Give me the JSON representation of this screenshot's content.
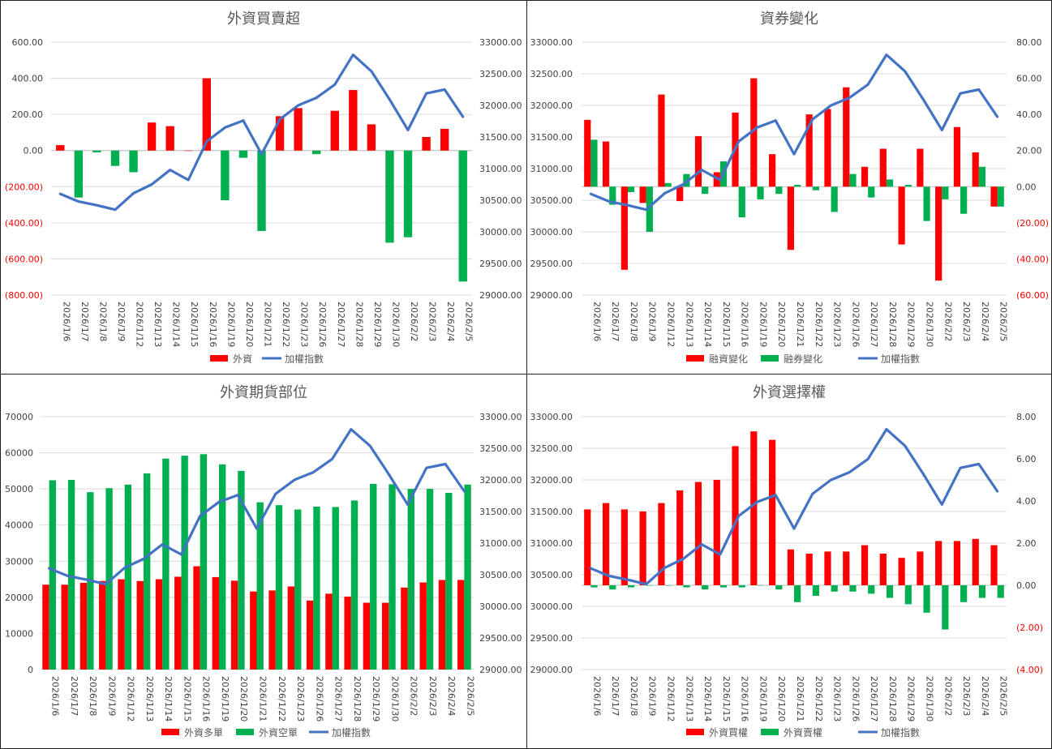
{
  "chart_data": [
    {
      "type": "bar",
      "title": "外資買賣超",
      "dates": [
        "2026/1/6",
        "2026/1/7",
        "2026/1/8",
        "2026/1/9",
        "2026/1/12",
        "2026/1/13",
        "2026/1/14",
        "2026/1/15",
        "2026/1/16",
        "2026/1/19",
        "2026/1/20",
        "2026/1/21",
        "2026/1/22",
        "2026/1/23",
        "2026/1/26",
        "2026/1/27",
        "2026/1/28",
        "2026/1/29",
        "2026/1/30",
        "2026/2/2",
        "2026/2/3",
        "2026/2/4",
        "2026/2/5"
      ],
      "y_ticks": [
        "600.00",
        "400.00",
        "200.00",
        "0.00",
        "(200.00)",
        "(400.00)",
        "(600.00)",
        "(800.00)"
      ],
      "y_ticks_right": [
        "33000.00",
        "32500.00",
        "32000.00",
        "31500.00",
        "31000.00",
        "30500.00",
        "30000.00",
        "29500.00",
        "29000.00"
      ],
      "ylim": [
        -800,
        600
      ],
      "ylim_right": [
        29000,
        33000
      ],
      "series": [
        {
          "name": "外資",
          "type": "bar",
          "values": [
            30,
            -260,
            -10,
            -85,
            -120,
            155,
            135,
            0,
            400,
            -275,
            -40,
            -445,
            190,
            235,
            -20,
            220,
            335,
            145,
            -510,
            -480,
            75,
            120,
            -725
          ]
        },
        {
          "name": "加權指數",
          "type": "line",
          "axis": "right",
          "values": [
            30600,
            30480,
            30420,
            30350,
            30610,
            30750,
            30980,
            30820,
            31430,
            31650,
            31760,
            31230,
            31780,
            32000,
            32120,
            32330,
            32800,
            32540,
            32090,
            31610,
            32190,
            32250,
            31820
          ]
        }
      ],
      "legend": [
        "外資",
        "加權指數"
      ],
      "legend_colors": [
        "#ff0000",
        "#4472c4"
      ],
      "legend_kinds": [
        "bar",
        "line"
      ]
    },
    {
      "type": "bar",
      "title": "資券變化",
      "dates": [
        "2026/1/6",
        "2026/1/7",
        "2026/1/8",
        "2026/1/9",
        "2026/1/12",
        "2026/1/13",
        "2026/1/14",
        "2026/1/15",
        "2026/1/16",
        "2026/1/19",
        "2026/1/20",
        "2026/1/21",
        "2026/1/22",
        "2026/1/23",
        "2026/1/26",
        "2026/1/27",
        "2026/1/28",
        "2026/1/29",
        "2026/1/30",
        "2026/2/2",
        "2026/2/3",
        "2026/2/4",
        "2026/2/5"
      ],
      "y_ticks": [
        "33000.00",
        "32500.00",
        "32000.00",
        "31500.00",
        "31000.00",
        "30500.00",
        "30000.00",
        "29500.00",
        "29000.00"
      ],
      "y_ticks_right": [
        "80.00",
        "60.00",
        "40.00",
        "20.00",
        "0.00",
        "(20.00)",
        "(40.00)",
        "(60.00)"
      ],
      "ylim": [
        29000,
        33000
      ],
      "ylim_right": [
        -60,
        80
      ],
      "series": [
        {
          "name": "融資變化",
          "type": "bar",
          "values": [
            37,
            25,
            -46,
            -9,
            51,
            -8,
            28,
            8,
            41,
            60,
            18,
            -35,
            40,
            43,
            55,
            11,
            21,
            -32,
            21,
            -52,
            33,
            19,
            -11
          ]
        },
        {
          "name": "融券變化",
          "type": "bar",
          "values": [
            26,
            -10,
            -3,
            -25,
            2,
            7,
            -4,
            14,
            -17,
            -7,
            -4,
            1,
            -2,
            -14,
            7,
            -6,
            4,
            1,
            -19,
            -7,
            -15,
            11,
            -11
          ]
        },
        {
          "name": "加權指數",
          "type": "line",
          "axis": "left",
          "values": [
            30600,
            30480,
            30420,
            30350,
            30610,
            30750,
            30980,
            30820,
            31430,
            31650,
            31760,
            31230,
            31780,
            32000,
            32120,
            32330,
            32800,
            32540,
            32090,
            31610,
            32190,
            32250,
            31820
          ]
        }
      ],
      "legend": [
        "融資變化",
        "融券變化",
        "加權指數"
      ],
      "legend_colors": [
        "#ff0000",
        "#00b050",
        "#4472c4"
      ],
      "legend_kinds": [
        "bar",
        "bar",
        "line"
      ]
    },
    {
      "type": "bar",
      "title": "外資期貨部位",
      "dates": [
        "2026/1/6",
        "2026/1/7",
        "2026/1/8",
        "2026/1/9",
        "2026/1/12",
        "2026/1/13",
        "2026/1/14",
        "2026/1/15",
        "2026/1/16",
        "2026/1/19",
        "2026/1/20",
        "2026/1/21",
        "2026/1/22",
        "2026/1/23",
        "2026/1/26",
        "2026/1/27",
        "2026/1/28",
        "2026/1/29",
        "2026/1/30",
        "2026/2/2",
        "2026/2/3",
        "2026/2/4",
        "2026/2/5"
      ],
      "y_ticks": [
        "70000",
        "60000",
        "50000",
        "40000",
        "30000",
        "20000",
        "10000",
        "0"
      ],
      "y_ticks_right": [
        "33000.00",
        "32500.00",
        "32000.00",
        "31500.00",
        "31000.00",
        "30500.00",
        "30000.00",
        "29500.00",
        "29000.00"
      ],
      "ylim": [
        0,
        70000
      ],
      "ylim_right": [
        29000,
        33000
      ],
      "series": [
        {
          "name": "外資多單",
          "type": "bar",
          "values": [
            23500,
            23500,
            24000,
            24500,
            25000,
            24500,
            25000,
            25700,
            28600,
            25600,
            24600,
            21600,
            21900,
            23000,
            19100,
            21000,
            20200,
            18500,
            18500,
            22700,
            24100,
            24800,
            24800
          ]
        },
        {
          "name": "外資空單",
          "type": "bar",
          "values": [
            52400,
            52500,
            49100,
            50200,
            51200,
            54300,
            58400,
            59200,
            59600,
            56800,
            55000,
            46300,
            45500,
            44300,
            45100,
            45000,
            46800,
            51400,
            51300,
            50000,
            50000,
            48900,
            51200
          ]
        },
        {
          "name": "加權指數",
          "type": "line",
          "axis": "right",
          "values": [
            30600,
            30480,
            30420,
            30350,
            30610,
            30750,
            30980,
            30820,
            31430,
            31650,
            31760,
            31230,
            31780,
            32000,
            32120,
            32330,
            32800,
            32540,
            32090,
            31610,
            32190,
            32250,
            31820
          ]
        }
      ],
      "legend": [
        "外資多單",
        "外資空單",
        "加權指數"
      ],
      "legend_colors": [
        "#ff0000",
        "#00b050",
        "#4472c4"
      ],
      "legend_kinds": [
        "bar",
        "bar",
        "line"
      ]
    },
    {
      "type": "bar",
      "title": "外資選擇權",
      "dates": [
        "2026/1/6",
        "2026/1/7",
        "2026/1/8",
        "2026/1/9",
        "2026/1/12",
        "2026/1/13",
        "2026/1/14",
        "2026/1/15",
        "2026/1/16",
        "2026/1/19",
        "2026/1/20",
        "2026/1/21",
        "2026/1/22",
        "2026/1/23",
        "2026/1/26",
        "2026/1/27",
        "2026/1/28",
        "2026/1/29",
        "2026/1/30",
        "2026/2/2",
        "2026/2/3",
        "2026/2/4",
        "2026/2/5"
      ],
      "y_ticks": [
        "33000.00",
        "32500.00",
        "32000.00",
        "31500.00",
        "31000.00",
        "30500.00",
        "30000.00",
        "29500.00",
        "29000.00"
      ],
      "y_ticks_right": [
        "8.00",
        "6.00",
        "4.00",
        "2.00",
        "0.00",
        "(2.00)",
        "(4.00)"
      ],
      "ylim": [
        29000,
        33000
      ],
      "ylim_right": [
        -4,
        8
      ],
      "series": [
        {
          "name": "外資買權",
          "type": "bar",
          "values": [
            3.6,
            3.9,
            3.6,
            3.5,
            3.9,
            4.5,
            4.9,
            5.0,
            6.6,
            7.3,
            6.9,
            1.7,
            1.5,
            1.6,
            1.6,
            1.9,
            1.5,
            1.3,
            1.6,
            2.1,
            2.1,
            2.2,
            1.9
          ]
        },
        {
          "name": "外資賣權",
          "type": "bar",
          "values": [
            -0.1,
            -0.2,
            -0.1,
            0,
            0,
            -0.1,
            -0.2,
            -0.1,
            -0.1,
            0,
            -0.2,
            -0.8,
            -0.5,
            -0.3,
            -0.3,
            -0.4,
            -0.6,
            -0.9,
            -1.3,
            -2.1,
            -0.8,
            -0.6,
            -0.6
          ]
        },
        {
          "name": "加權指數",
          "type": "line",
          "axis": "left",
          "values": [
            30600,
            30480,
            30420,
            30350,
            30610,
            30750,
            30980,
            30820,
            31430,
            31650,
            31760,
            31230,
            31780,
            32000,
            32120,
            32330,
            32800,
            32540,
            32090,
            31610,
            32190,
            32250,
            31820
          ]
        }
      ],
      "legend": [
        "外資買權",
        "外資賣權",
        "加權指數"
      ],
      "legend_colors": [
        "#ff0000",
        "#00b050",
        "#4472c4"
      ],
      "legend_kinds": [
        "bar",
        "bar",
        "line"
      ]
    }
  ]
}
